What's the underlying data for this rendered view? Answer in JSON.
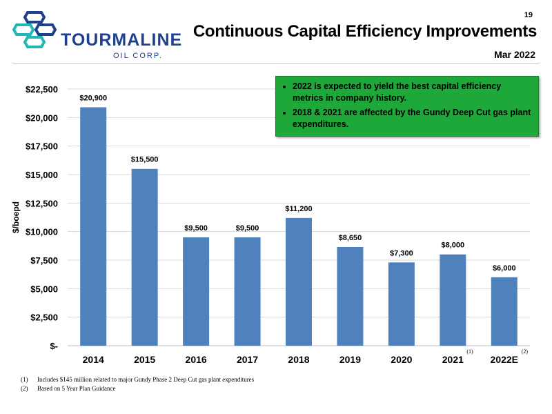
{
  "page_number": "19",
  "title": "Continuous Capital Efficiency Improvements",
  "date": "Mar 2022",
  "logo": {
    "name": "TOURMALINE",
    "sub": "OIL CORP."
  },
  "callout": [
    "2022 is expected to yield the best capital efficiency metrics in company history.",
    "2018 & 2021 are affected by the Gundy Deep Cut gas plant expenditures."
  ],
  "colors": {
    "bar": "#4f81bd",
    "callout": "#1ea83a",
    "brand": "#1f3f8f"
  },
  "chart_data": {
    "type": "bar",
    "categories": [
      "2014",
      "2015",
      "2016",
      "2017",
      "2018",
      "2019",
      "2020",
      "2021",
      "2022E"
    ],
    "category_marks": [
      "",
      "",
      "",
      "",
      "",
      "",
      "",
      "(1)",
      "(2)"
    ],
    "values": [
      20900,
      15500,
      9500,
      9500,
      11200,
      8650,
      7300,
      8000,
      6000
    ],
    "data_labels": [
      "$20,900",
      "$15,500",
      "$9,500",
      "$9,500",
      "$11,200",
      "$8,650",
      "$7,300",
      "$8,000",
      "$6,000"
    ],
    "ylabel": "$/boepd",
    "ylim": [
      0,
      22500
    ],
    "yticks": [
      0,
      2500,
      5000,
      7500,
      10000,
      12500,
      15000,
      17500,
      20000,
      22500
    ],
    "ytick_labels": [
      "$-",
      "$2,500",
      "$5,000",
      "$7,500",
      "$10,000",
      "$12,500",
      "$15,000",
      "$17,500",
      "$20,000",
      "$22,500"
    ],
    "grid": true,
    "legend": "none"
  },
  "footnotes": [
    {
      "mark": "(1)",
      "text": "Includes $145 million related to major Gundy Phase 2 Deep Cut gas plant expenditures"
    },
    {
      "mark": "(2)",
      "text": "Based on 5 Year Plan Guidance"
    }
  ]
}
